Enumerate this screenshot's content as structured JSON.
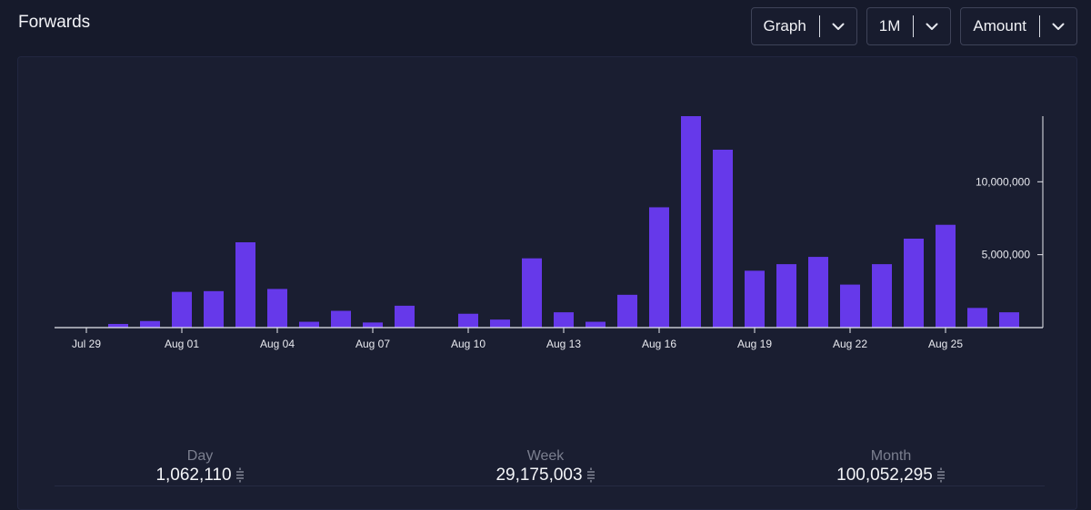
{
  "header": {
    "title": "Forwards"
  },
  "controls": [
    {
      "name": "view-select",
      "label": "Graph"
    },
    {
      "name": "period-select",
      "label": "1M"
    },
    {
      "name": "metric-select",
      "label": "Amount"
    }
  ],
  "chart_data": {
    "type": "bar",
    "categories": [
      "Jul 29",
      "Jul 30",
      "Jul 31",
      "Aug 01",
      "Aug 02",
      "Aug 03",
      "Aug 04",
      "Aug 05",
      "Aug 06",
      "Aug 07",
      "Aug 08",
      "Aug 09",
      "Aug 10",
      "Aug 11",
      "Aug 12",
      "Aug 13",
      "Aug 14",
      "Aug 15",
      "Aug 16",
      "Aug 17",
      "Aug 18",
      "Aug 19",
      "Aug 20",
      "Aug 21",
      "Aug 22",
      "Aug 23",
      "Aug 24",
      "Aug 25",
      "Aug 26",
      "Aug 27"
    ],
    "values": [
      0,
      250000,
      450000,
      2450000,
      2500000,
      5850000,
      2650000,
      400000,
      1150000,
      350000,
      1500000,
      0,
      950000,
      550000,
      4750000,
      1050000,
      400000,
      2250000,
      8250000,
      14500000,
      12200000,
      3900000,
      4350000,
      4850000,
      2950000,
      4350000,
      6100000,
      7050000,
      1350000,
      1050000
    ],
    "x_tick_labels": [
      "Jul 29",
      "Aug 01",
      "Aug 04",
      "Aug 07",
      "Aug 10",
      "Aug 13",
      "Aug 16",
      "Aug 19",
      "Aug 22",
      "Aug 25"
    ],
    "y_tick_labels": [
      {
        "value": 5000000,
        "label": "5,000,000"
      },
      {
        "value": 10000000,
        "label": "10,000,000"
      }
    ],
    "ylim": [
      0,
      14500000
    ],
    "y_axis_position": "right",
    "grid": false,
    "bar_color": "#6639ea"
  },
  "stats": [
    {
      "name": "day",
      "label": "Day",
      "value": "1,062,110"
    },
    {
      "name": "week",
      "label": "Week",
      "value": "29,175,003"
    },
    {
      "name": "month",
      "label": "Month",
      "value": "100,052,295"
    }
  ],
  "icons": {
    "dropdown": "chevron-down-icon",
    "unit": "satoshi-icon"
  }
}
